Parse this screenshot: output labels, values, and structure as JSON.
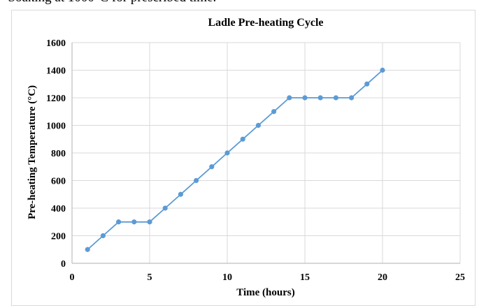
{
  "page_text": "• Soaking at 1000°C for prescribed time.",
  "chart_data": {
    "type": "line",
    "title": "Ladle Pre-heating  Cycle",
    "xlabel": "Time (hours)",
    "ylabel": "Pre-heating Temperature (°C)",
    "xlim": [
      0,
      25
    ],
    "ylim": [
      0,
      1600
    ],
    "xticks": [
      "0",
      "5",
      "10",
      "15",
      "20",
      "25"
    ],
    "yticks": [
      "0",
      "200",
      "400",
      "600",
      "800",
      "1000",
      "1200",
      "1400",
      "1600"
    ],
    "grid": true,
    "x": [
      1,
      2,
      3,
      4,
      5,
      6,
      7,
      8,
      9,
      10,
      11,
      12,
      13,
      14,
      15,
      16,
      17,
      18,
      19,
      20
    ],
    "series": [
      {
        "values": [
          100,
          200,
          300,
          300,
          300,
          400,
          500,
          600,
          700,
          800,
          900,
          1000,
          1100,
          1200,
          1200,
          1200,
          1200,
          1200,
          1300,
          1400
        ]
      }
    ],
    "colors": {
      "line": "#5b9bd5",
      "grid": "#d9d9d9",
      "axis": "#bfbfbf"
    }
  }
}
